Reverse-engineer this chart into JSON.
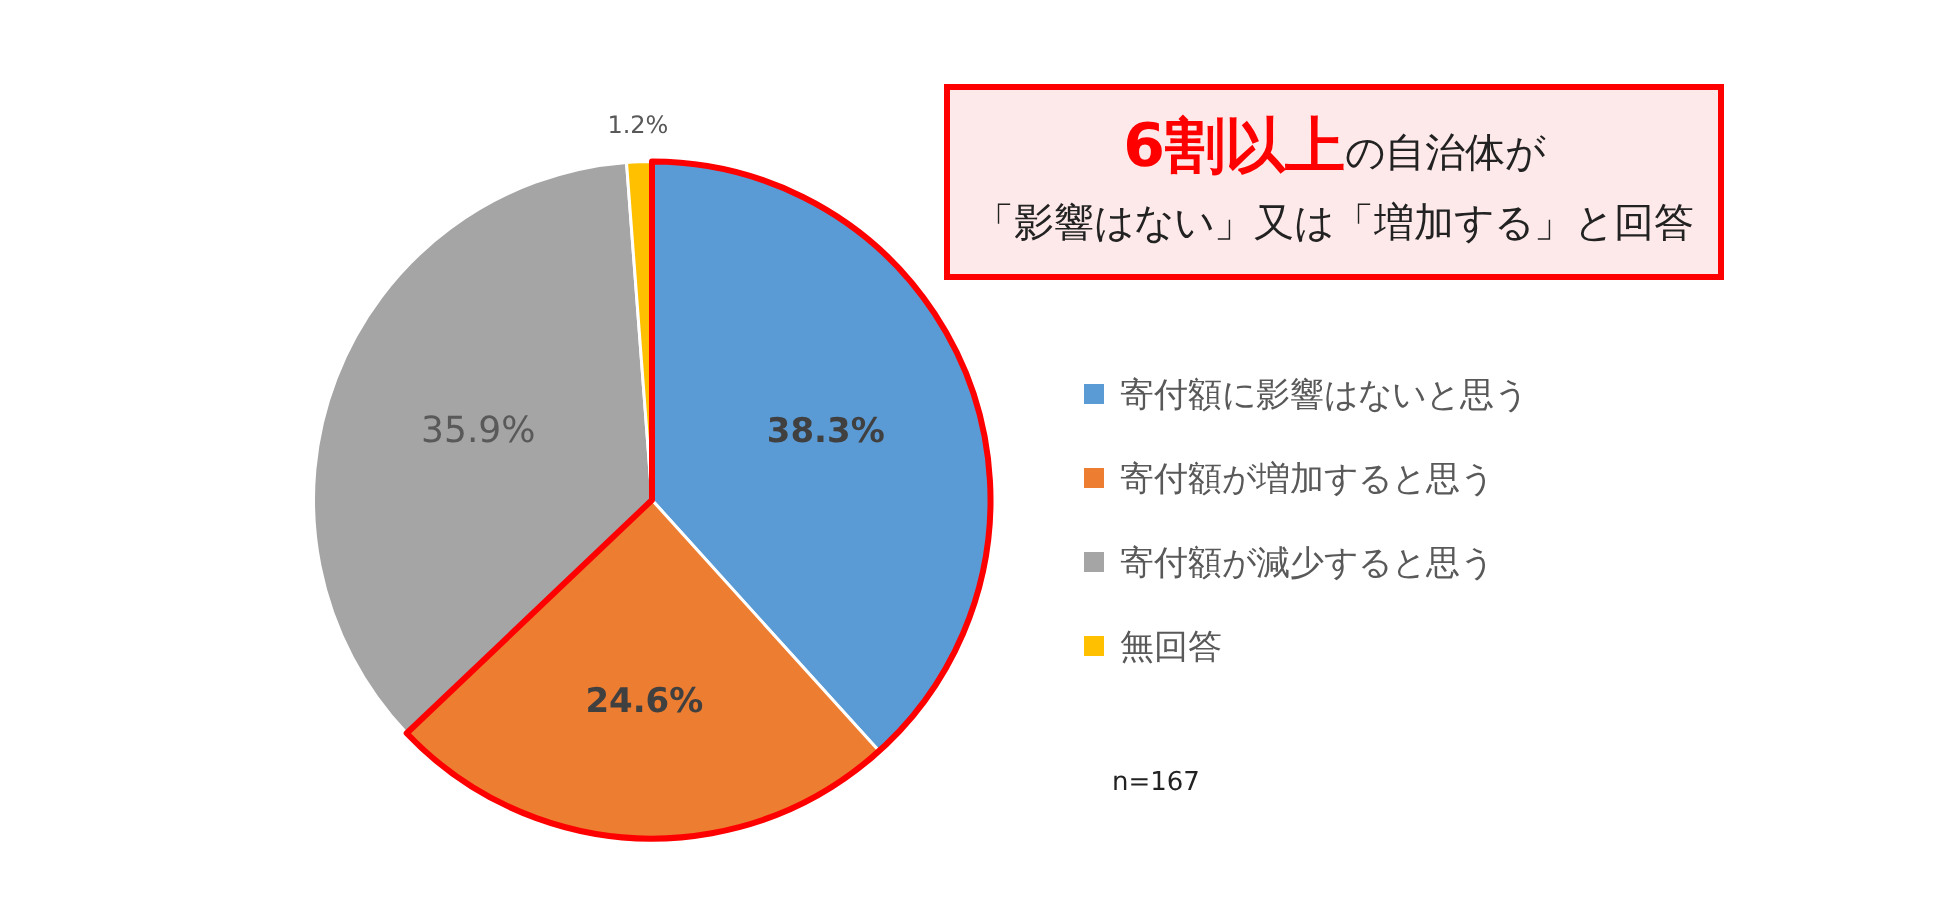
{
  "chart_data": {
    "type": "pie",
    "categories": [
      "寄付額に影響はないと思う",
      "寄付額が増加すると思う",
      "寄付額が減少すると思う",
      "無回答"
    ],
    "values": [
      38.3,
      24.6,
      35.9,
      1.2
    ],
    "colors": [
      "#5b9bd5",
      "#ed7d31",
      "#a5a5a5",
      "#ffc000"
    ],
    "value_labels": [
      "38.3%",
      "24.6%",
      "35.9%",
      "1.2%"
    ],
    "legend": "right",
    "annotations": [
      "6割以上",
      "の自治体が",
      "「影響はない」又は「増加する」と回答",
      "n=167"
    ]
  }
}
